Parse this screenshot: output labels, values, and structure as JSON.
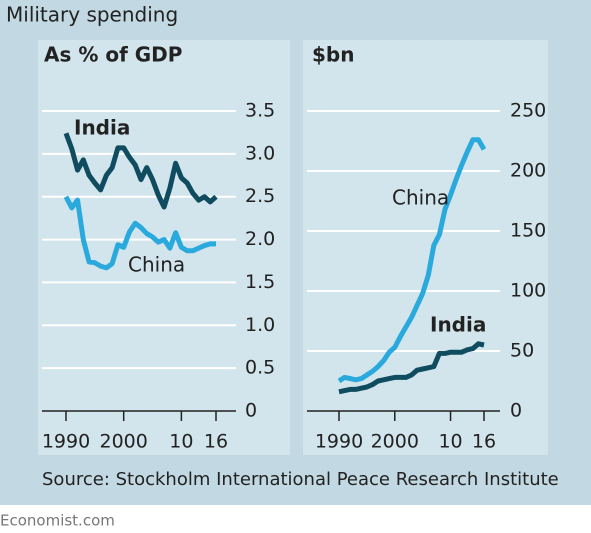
{
  "title": "Military spending",
  "chart_data": [
    {
      "type": "line",
      "title": "As % of GDP",
      "x": [
        1990,
        1991,
        1992,
        1993,
        1994,
        1995,
        1996,
        1997,
        1998,
        1999,
        2000,
        2001,
        2002,
        2003,
        2004,
        2005,
        2006,
        2007,
        2008,
        2009,
        2010,
        2011,
        2012,
        2013,
        2014,
        2015,
        2016
      ],
      "series": [
        {
          "name": "India",
          "color": "#0f4c5f",
          "values": [
            3.24,
            3.06,
            2.81,
            2.93,
            2.75,
            2.66,
            2.58,
            2.75,
            2.84,
            3.07,
            3.07,
            2.96,
            2.87,
            2.7,
            2.84,
            2.7,
            2.52,
            2.38,
            2.6,
            2.89,
            2.72,
            2.66,
            2.54,
            2.46,
            2.5,
            2.44,
            2.5
          ]
        },
        {
          "name": "China",
          "color": "#2aa9dd",
          "values": [
            2.5,
            2.37,
            2.46,
            2.0,
            1.74,
            1.73,
            1.69,
            1.67,
            1.72,
            1.94,
            1.91,
            2.09,
            2.19,
            2.14,
            2.07,
            2.03,
            1.97,
            2.0,
            1.9,
            2.08,
            1.91,
            1.87,
            1.87,
            1.9,
            1.93,
            1.95,
            1.95
          ]
        }
      ],
      "xlim": [
        1990,
        2016
      ],
      "xticks": [
        1990,
        2000,
        {
          "value": 2010,
          "label": "10"
        },
        {
          "value": 2016,
          "label": "16"
        }
      ],
      "ylim": [
        0,
        3.5
      ],
      "yticks": [
        0,
        0.5,
        {
          "value": 1,
          "label": "1.0"
        },
        1.5,
        {
          "value": 2,
          "label": "2.0"
        },
        2.5,
        {
          "value": 3,
          "label": "3.0"
        },
        3.5
      ],
      "grid": true
    },
    {
      "type": "line",
      "title": "$bn",
      "x": [
        1990,
        1991,
        1992,
        1993,
        1994,
        1995,
        1996,
        1997,
        1998,
        1999,
        2000,
        2001,
        2002,
        2003,
        2004,
        2005,
        2006,
        2007,
        2008,
        2009,
        2010,
        2011,
        2012,
        2013,
        2014,
        2015,
        2016
      ],
      "series": [
        {
          "name": "China",
          "color": "#2aa9dd",
          "values": [
            25,
            28,
            27,
            26,
            27,
            30,
            33,
            37,
            42,
            49,
            53,
            62,
            70,
            78,
            88,
            98,
            113,
            138,
            147,
            168,
            180,
            193,
            205,
            216,
            226,
            226,
            218
          ]
        },
        {
          "name": "India",
          "color": "#0f4c5f",
          "values": [
            16,
            17,
            18,
            18,
            19,
            20,
            22,
            25,
            26,
            27,
            28,
            28,
            28,
            30,
            34,
            35,
            36,
            37,
            48,
            48,
            49,
            49,
            49,
            51,
            52,
            56,
            55
          ]
        }
      ],
      "xlim": [
        1990,
        2016
      ],
      "xticks": [
        1990,
        2000,
        {
          "value": 2010,
          "label": "10"
        },
        {
          "value": 2016,
          "label": "16"
        }
      ],
      "ylim": [
        0,
        250
      ],
      "yticks": [
        0,
        50,
        100,
        150,
        200,
        250
      ],
      "grid": true
    }
  ],
  "source": "Source: Stockholm International Peace Research Institute",
  "footer": "Economist.com"
}
